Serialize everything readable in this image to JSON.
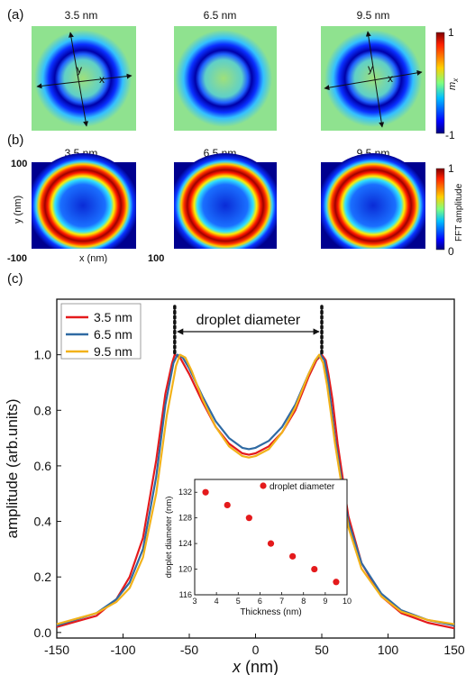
{
  "panels": {
    "a": {
      "label": "(a)",
      "titles": [
        "3.5 nm",
        "6.5 nm",
        "9.5 nm"
      ],
      "axis_x": "x",
      "axis_y": "y",
      "colorbar": {
        "top": "1",
        "bottom": "-1",
        "label": "m",
        "sub": "x"
      }
    },
    "b": {
      "label": "(b)",
      "titles": [
        "3.5 nm",
        "6.5 nm",
        "9.5 nm"
      ],
      "y_top": "100",
      "y_label": "y (nm)",
      "x_label": "x (nm)",
      "x_left": "-100",
      "x_right": "100",
      "colorbar": {
        "top": "1",
        "bottom": "0",
        "label": "FFT amplitude"
      }
    },
    "c": {
      "label": "(c)",
      "annotation": "droplet diameter"
    }
  },
  "colors": {
    "s35": "#e41a1c",
    "s65": "#2f6aa3",
    "s95": "#f2b21a",
    "marker": "#e41a1c"
  },
  "chart_data": [
    {
      "type": "line",
      "xlabel": "x (nm)",
      "ylabel": "amplitude (arb.units)",
      "xlim": [
        -150,
        150
      ],
      "ylim": [
        -0.02,
        1.2
      ],
      "x_ticks": [
        -150,
        -100,
        -50,
        0,
        50,
        100,
        150
      ],
      "y_ticks": [
        0.0,
        0.2,
        0.4,
        0.6,
        0.8,
        1.0
      ],
      "legend": "top-left",
      "series": [
        {
          "name": "3.5 nm",
          "x": [
            -150,
            -120,
            -105,
            -95,
            -85,
            -75,
            -68,
            -63,
            -61,
            -57,
            -50,
            -40,
            -30,
            -20,
            -10,
            -5,
            0,
            10,
            20,
            30,
            40,
            46,
            50,
            53,
            55,
            58,
            62,
            70,
            80,
            95,
            110,
            130,
            150
          ],
          "y": [
            0.02,
            0.06,
            0.12,
            0.2,
            0.34,
            0.62,
            0.86,
            0.97,
            1.0,
            0.99,
            0.93,
            0.83,
            0.74,
            0.68,
            0.645,
            0.64,
            0.645,
            0.67,
            0.72,
            0.8,
            0.92,
            0.98,
            1.0,
            0.98,
            0.93,
            0.84,
            0.68,
            0.42,
            0.25,
            0.13,
            0.07,
            0.035,
            0.015
          ]
        },
        {
          "name": "6.5 nm",
          "x": [
            -150,
            -120,
            -105,
            -95,
            -85,
            -75,
            -68,
            -62,
            -59,
            -55,
            -50,
            -40,
            -30,
            -20,
            -10,
            -5,
            0,
            10,
            20,
            30,
            40,
            45,
            49,
            52,
            55,
            60,
            70,
            80,
            95,
            110,
            130,
            150
          ],
          "y": [
            0.025,
            0.07,
            0.12,
            0.18,
            0.3,
            0.56,
            0.82,
            0.97,
            1.0,
            0.99,
            0.95,
            0.85,
            0.76,
            0.7,
            0.665,
            0.66,
            0.665,
            0.69,
            0.74,
            0.82,
            0.93,
            0.98,
            1.0,
            0.98,
            0.9,
            0.7,
            0.4,
            0.25,
            0.14,
            0.08,
            0.045,
            0.025
          ]
        },
        {
          "name": "9.5 nm",
          "x": [
            -150,
            -120,
            -105,
            -95,
            -85,
            -75,
            -67,
            -60,
            -57,
            -53,
            -48,
            -40,
            -30,
            -20,
            -10,
            -5,
            0,
            10,
            20,
            30,
            40,
            45,
            48,
            51,
            54,
            60,
            70,
            80,
            95,
            110,
            130,
            150
          ],
          "y": [
            0.03,
            0.07,
            0.11,
            0.16,
            0.27,
            0.5,
            0.78,
            0.96,
            1.0,
            0.99,
            0.94,
            0.84,
            0.74,
            0.67,
            0.635,
            0.63,
            0.635,
            0.66,
            0.72,
            0.81,
            0.93,
            0.98,
            1.0,
            0.97,
            0.89,
            0.68,
            0.38,
            0.23,
            0.13,
            0.075,
            0.045,
            0.03
          ]
        }
      ]
    },
    {
      "type": "scatter",
      "xlabel": "Thickness (nm)",
      "ylabel": "droplet diameter (nm)",
      "xlim": [
        3,
        10
      ],
      "ylim": [
        116,
        134
      ],
      "x_ticks": [
        3,
        4,
        5,
        6,
        7,
        8,
        9,
        10
      ],
      "y_ticks": [
        116,
        120,
        124,
        128,
        132
      ],
      "legend": "top-right",
      "series": [
        {
          "name": "droplet diameter",
          "x": [
            3.5,
            4.5,
            5.5,
            6.5,
            7.5,
            8.5,
            9.5
          ],
          "y": [
            132,
            130,
            128,
            124,
            122,
            120,
            118
          ]
        }
      ]
    }
  ]
}
